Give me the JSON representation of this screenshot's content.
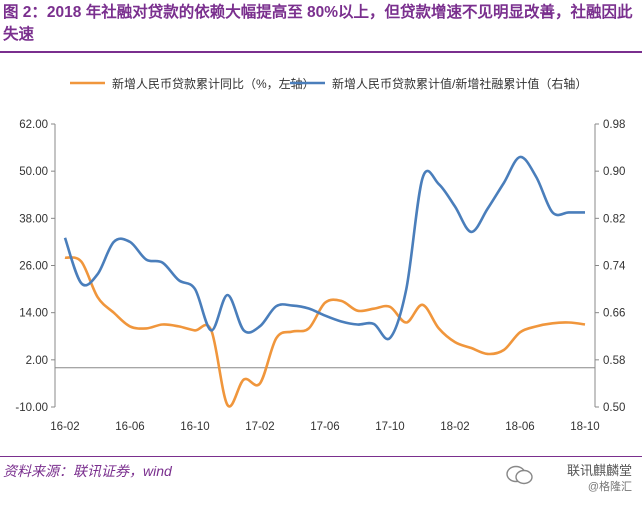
{
  "header": {
    "title": "图 2：2018 年社融对贷款的依赖大幅提高至 80%以上，但贷款增速不见明显改善，社融因此失速"
  },
  "footer": {
    "source": "资料来源：联讯证券，wind",
    "watermark_name": "联讯麒麟堂",
    "watermark_sub": "@格隆汇"
  },
  "colors": {
    "accent": "#7a2f8e",
    "series_left": "#f0963c",
    "series_right": "#4a7ebb"
  },
  "chart_data": {
    "type": "line",
    "legend_placement": "top",
    "x": [
      "16-02",
      "16-03",
      "16-04",
      "16-05",
      "16-06",
      "16-07",
      "16-08",
      "16-09",
      "16-10",
      "16-11",
      "16-12",
      "17-01",
      "17-02",
      "17-03",
      "17-04",
      "17-05",
      "17-06",
      "17-07",
      "17-08",
      "17-09",
      "17-10",
      "17-11",
      "17-12",
      "18-01",
      "18-02",
      "18-03",
      "18-04",
      "18-05",
      "18-06",
      "18-07",
      "18-08",
      "18-09",
      "18-10"
    ],
    "x_ticks": [
      "16-02",
      "16-06",
      "16-10",
      "17-02",
      "17-06",
      "17-10",
      "18-02",
      "18-06",
      "18-10"
    ],
    "y_left": {
      "ticks": [
        "62.00",
        "50.00",
        "38.00",
        "26.00",
        "14.00",
        "2.00",
        "-10.00"
      ],
      "ylim": [
        -10,
        62
      ]
    },
    "y_right": {
      "ticks": [
        "0.98",
        "0.90",
        "0.82",
        "0.74",
        "0.66",
        "0.58",
        "0.50"
      ],
      "ylim": [
        0.5,
        0.98
      ]
    },
    "series": [
      {
        "name": "新增人民币贷款累计同比（%，左轴）",
        "axis": "left",
        "values": [
          28,
          27,
          18,
          14,
          10.5,
          10,
          11,
          10.5,
          9.5,
          9.5,
          -9.5,
          -3,
          -4,
          7.5,
          9.2,
          10,
          16.5,
          17,
          14.5,
          15,
          15.5,
          11.5,
          16,
          10,
          6.5,
          5,
          3.5,
          4.5,
          9,
          10.5,
          11.3,
          11.5,
          11
        ]
      },
      {
        "name": "新增人民币贷款累计值/新增社融累计值（右轴）",
        "axis": "right",
        "values": [
          0.787,
          0.71,
          0.725,
          0.78,
          0.78,
          0.75,
          0.745,
          0.715,
          0.7,
          0.63,
          0.69,
          0.63,
          0.637,
          0.671,
          0.672,
          0.667,
          0.655,
          0.645,
          0.64,
          0.641,
          0.617,
          0.7,
          0.888,
          0.878,
          0.84,
          0.797,
          0.836,
          0.88,
          0.924,
          0.89,
          0.83,
          0.83,
          0.83
        ]
      }
    ]
  }
}
